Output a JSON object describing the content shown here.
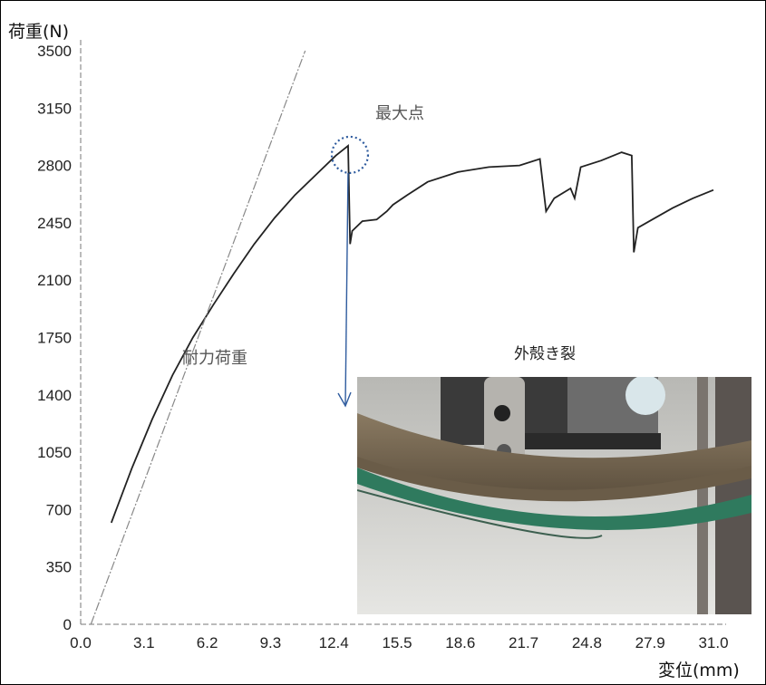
{
  "chart_data": {
    "type": "line",
    "ylabel": "荷重(N)",
    "xlabel": "変位(mm)",
    "xlim": [
      0,
      31.0
    ],
    "ylim": [
      0,
      3500
    ],
    "x_ticks": [
      "0.0",
      "3.1",
      "6.2",
      "9.3",
      "12.4",
      "15.5",
      "18.6",
      "21.7",
      "24.8",
      "27.9",
      "31.0"
    ],
    "y_ticks": [
      "0",
      "350",
      "700",
      "1050",
      "1400",
      "1750",
      "2100",
      "2450",
      "2800",
      "3150",
      "3500"
    ],
    "grid": false,
    "series": [
      {
        "role": "load-displacement-curve",
        "x": [
          1.5,
          2.5,
          3.5,
          4.5,
          5.5,
          6.5,
          7.5,
          8.5,
          9.5,
          10.5,
          11.5,
          12.5,
          13.1,
          13.2,
          13.3,
          13.8,
          14.5,
          15.0,
          15.3,
          16.0,
          17.0,
          18.5,
          20.0,
          21.5,
          22.5,
          22.8,
          23.2,
          24.0,
          24.2,
          24.5,
          25.5,
          26.5,
          27.0,
          27.1,
          27.3,
          28.0,
          29.0,
          30.0,
          31.0
        ],
        "y": [
          620,
          950,
          1250,
          1520,
          1750,
          1950,
          2140,
          2320,
          2480,
          2620,
          2740,
          2860,
          2920,
          2320,
          2400,
          2460,
          2470,
          2520,
          2560,
          2620,
          2700,
          2760,
          2790,
          2800,
          2840,
          2520,
          2600,
          2660,
          2600,
          2790,
          2830,
          2880,
          2860,
          2270,
          2420,
          2470,
          2540,
          2600,
          2650
        ]
      },
      {
        "role": "initial-slope-line",
        "x": [
          0.5,
          11.0
        ],
        "y": [
          0,
          3500
        ]
      }
    ],
    "annotations": {
      "max_point": "最大点",
      "proof_load": "耐力荷重",
      "photo_caption": "外殻き裂"
    }
  },
  "colors": {
    "curve": "#222222",
    "slope_line": "#888888",
    "marker": "#2e5b9e"
  }
}
